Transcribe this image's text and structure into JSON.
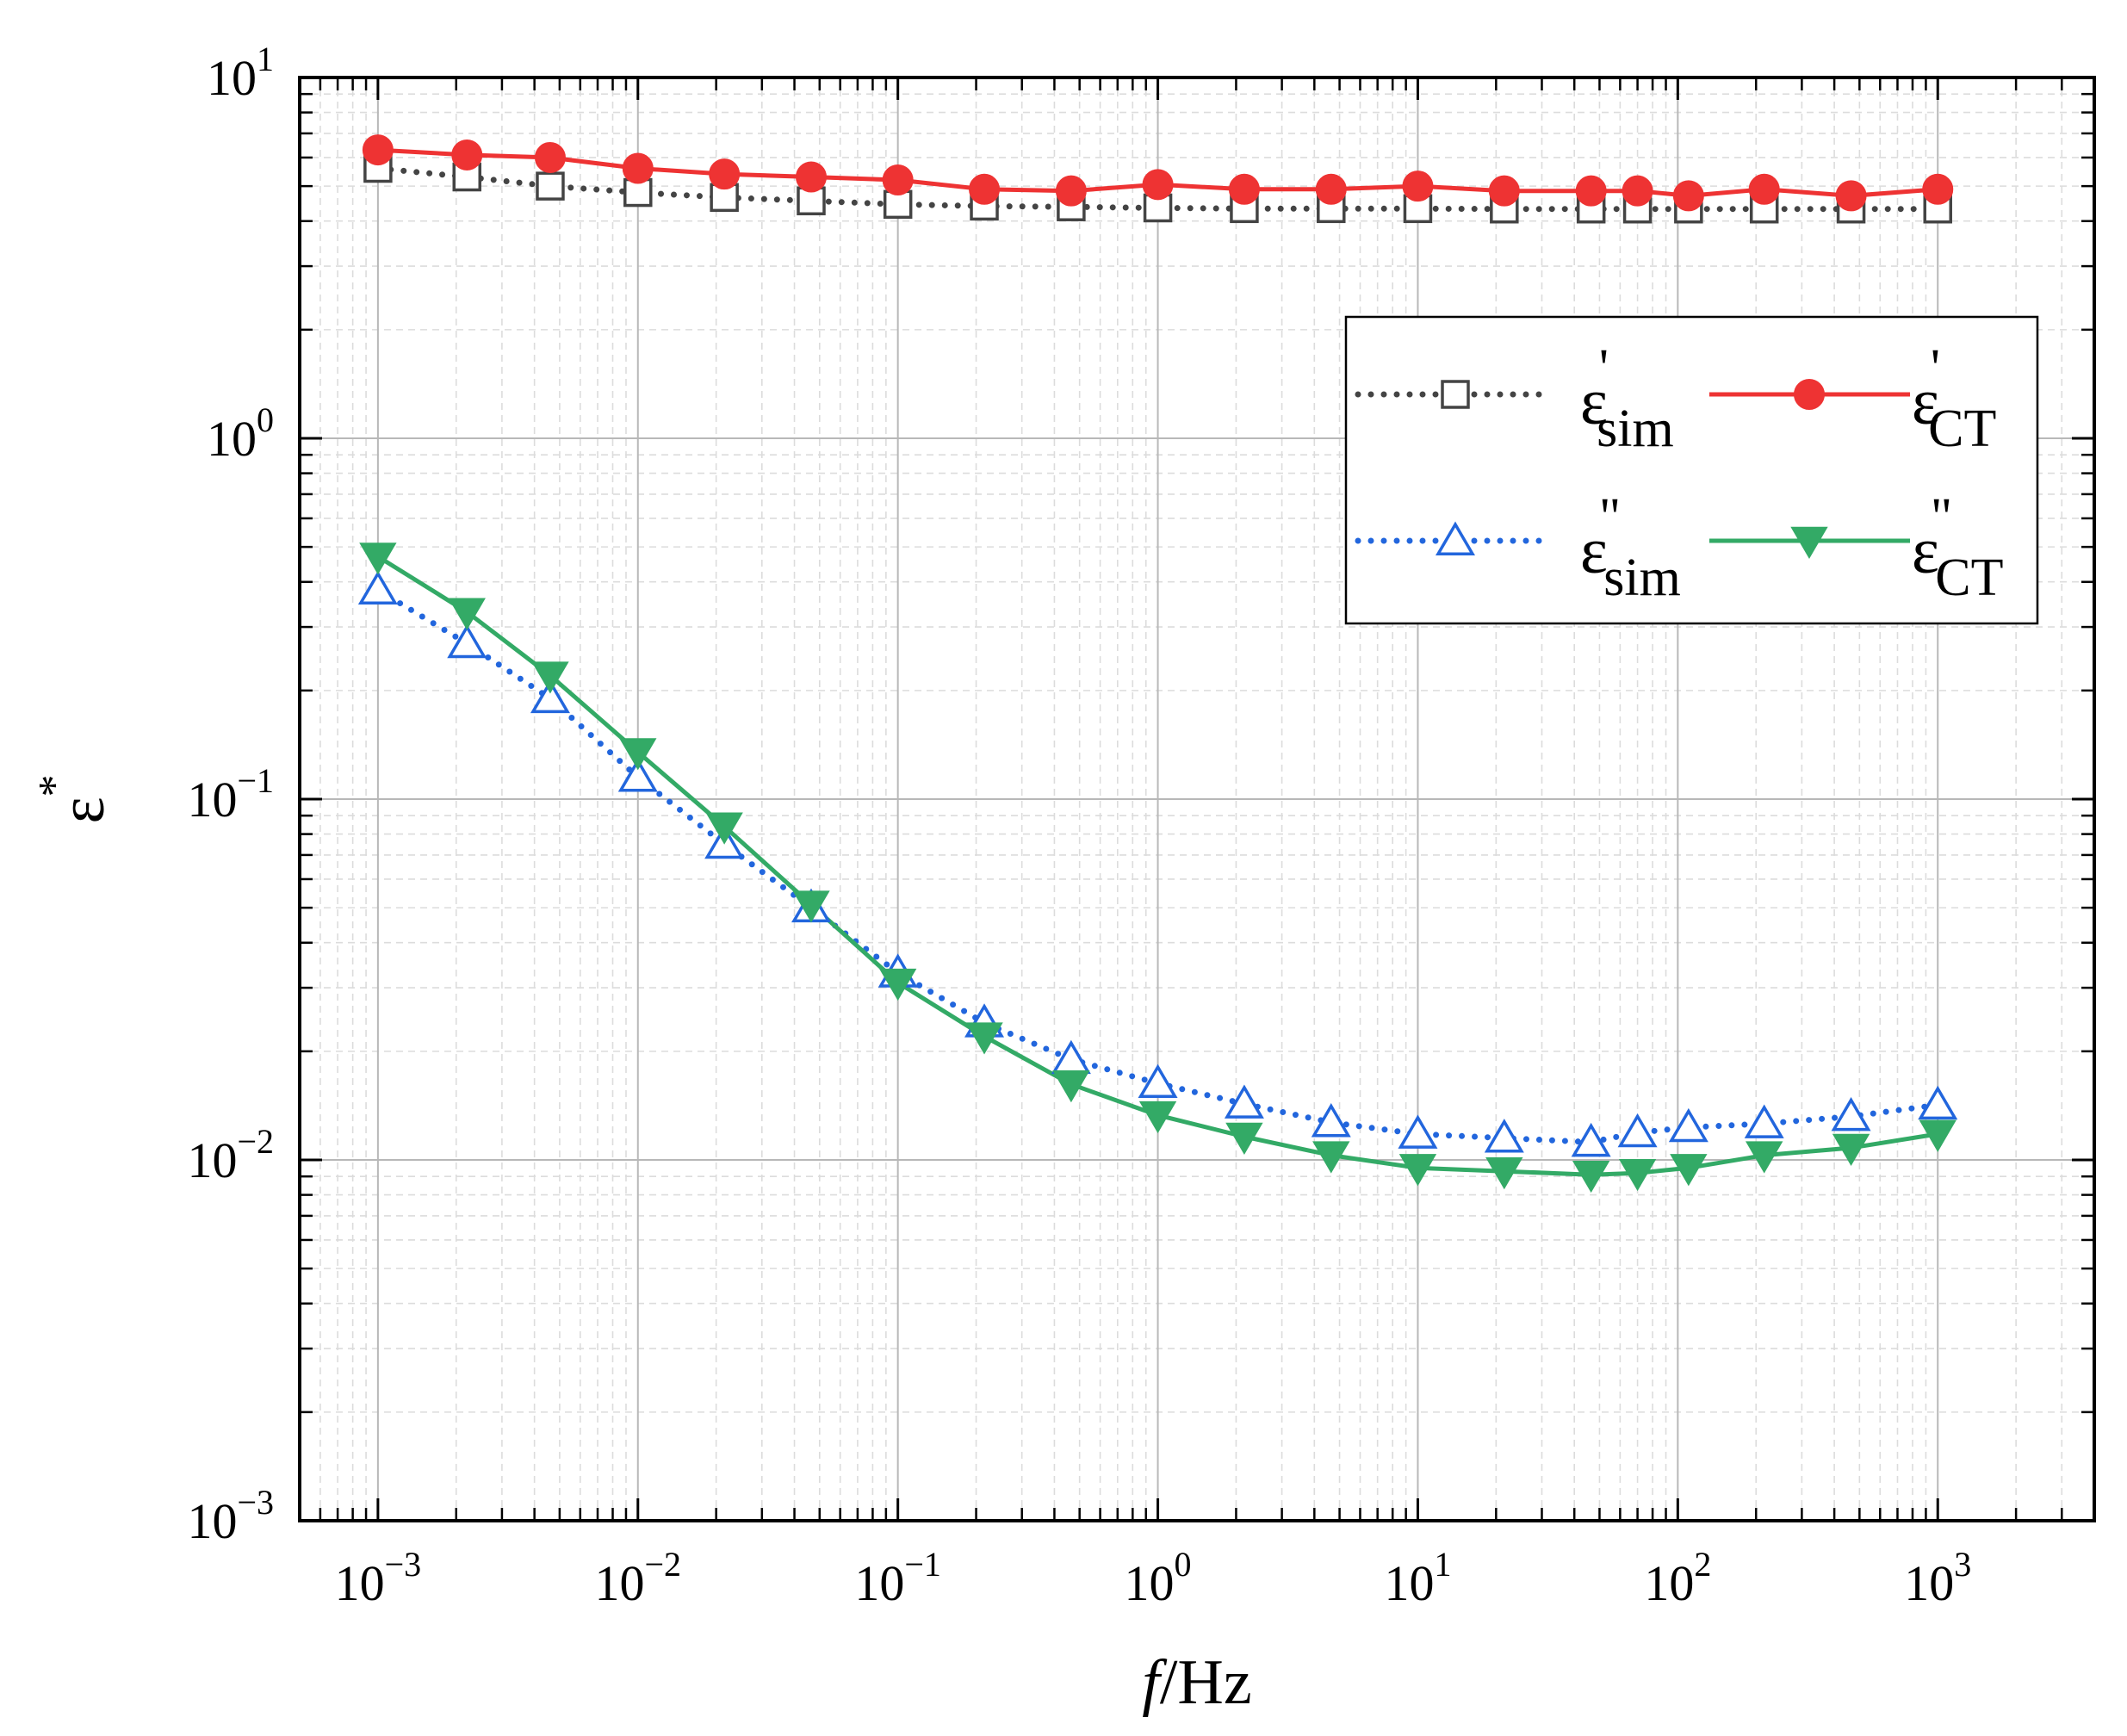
{
  "chart_data": {
    "type": "line",
    "x_scale": "log",
    "y_scale": "log",
    "xlabel": {
      "italic": "f",
      "rest": "/Hz"
    },
    "ylabel": {
      "base": "ε",
      "sup": "*"
    },
    "xlim": [
      0.0005,
      4000
    ],
    "ylim": [
      0.001,
      10
    ],
    "grid": true,
    "legend_position": "top-right",
    "x_ticks": [
      {
        "value": 0.001,
        "base": "10",
        "exp": "−3"
      },
      {
        "value": 0.01,
        "base": "10",
        "exp": "−2"
      },
      {
        "value": 0.1,
        "base": "10",
        "exp": "−1"
      },
      {
        "value": 1,
        "base": "10",
        "exp": "0"
      },
      {
        "value": 10,
        "base": "10",
        "exp": "1"
      },
      {
        "value": 100,
        "base": "10",
        "exp": "2"
      },
      {
        "value": 1000,
        "base": "10",
        "exp": "3"
      }
    ],
    "y_ticks": [
      {
        "value": 10,
        "base": "10",
        "exp": "1"
      },
      {
        "value": 1,
        "base": "10",
        "exp": "0"
      },
      {
        "value": 0.1,
        "base": "10",
        "exp": "−1"
      },
      {
        "value": 0.01,
        "base": "10",
        "exp": "−2"
      },
      {
        "value": 0.001,
        "base": "10",
        "exp": "−3"
      }
    ],
    "x": [
      0.001,
      0.0022,
      0.0046,
      0.01,
      0.0215,
      0.0464,
      0.1,
      0.215,
      0.464,
      1,
      2.15,
      4.64,
      10,
      21.5,
      46.4,
      70,
      110,
      215,
      464,
      1000
    ],
    "series": [
      {
        "name": "eps_prime_sim",
        "label_base": "ε",
        "label_sup": "'",
        "label_sub": "sim",
        "color": "#444444",
        "marker": "square-open",
        "line": "dotted",
        "values": [
          5.6,
          5.3,
          5.0,
          4.8,
          4.65,
          4.55,
          4.45,
          4.4,
          4.38,
          4.35,
          4.33,
          4.33,
          4.33,
          4.32,
          4.32,
          4.32,
          4.32,
          4.32,
          4.32,
          4.32
        ]
      },
      {
        "name": "eps_prime_CT",
        "label_base": "ε",
        "label_sup": "'",
        "label_sub": "CT",
        "color": "#ee3333",
        "marker": "circle-filled",
        "line": "solid",
        "values": [
          6.3,
          6.1,
          6.0,
          5.6,
          5.4,
          5.3,
          5.2,
          4.9,
          4.85,
          5.05,
          4.9,
          4.9,
          5.0,
          4.85,
          4.85,
          4.85,
          4.7,
          4.9,
          4.7,
          4.9
        ]
      },
      {
        "name": "eps_dprime_sim",
        "label_base": "ε",
        "label_sup": "\"",
        "label_sub": "sim",
        "color": "#2266dd",
        "marker": "triangle-up-open",
        "line": "dotted",
        "values": [
          0.38,
          0.27,
          0.19,
          0.115,
          0.075,
          0.05,
          0.033,
          0.024,
          0.019,
          0.0163,
          0.0143,
          0.0127,
          0.0118,
          0.0115,
          0.0112,
          0.0119,
          0.0123,
          0.0126,
          0.0132,
          0.0142
        ]
      },
      {
        "name": "eps_dprime_CT",
        "label_base": "ε",
        "label_sup": "\"",
        "label_sub": "CT",
        "color": "#33aa66",
        "marker": "triangle-down-filled",
        "line": "solid",
        "values": [
          0.47,
          0.33,
          0.22,
          0.135,
          0.084,
          0.051,
          0.031,
          0.022,
          0.0162,
          0.0133,
          0.0116,
          0.0103,
          0.0095,
          0.0093,
          0.0091,
          0.0092,
          0.0095,
          0.0103,
          0.0108,
          0.0118
        ]
      }
    ]
  }
}
